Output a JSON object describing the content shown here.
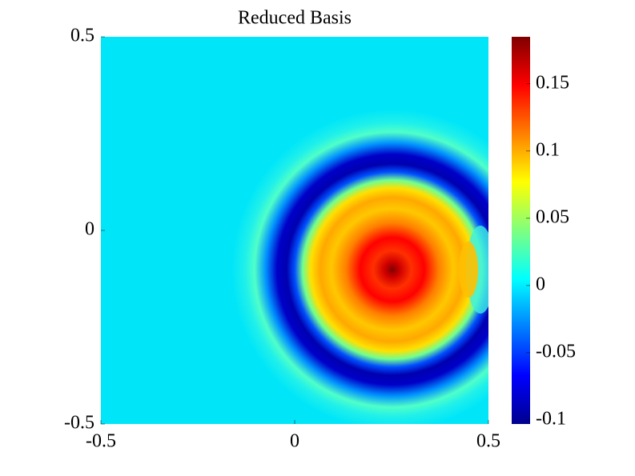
{
  "chart_data": {
    "type": "heatmap",
    "title": "Reduced Basis",
    "xlim": [
      -0.5,
      0.5
    ],
    "xticks": [
      -0.5,
      0,
      0.5
    ],
    "ylim": [
      -0.5,
      0.5
    ],
    "yticks": [
      -0.5,
      0,
      0.5
    ],
    "colormap": "jet",
    "clim": [
      -0.103,
      0.185
    ],
    "cticks": [
      -0.1,
      -0.05,
      0,
      0.05,
      0.1,
      0.15
    ]
  }
}
